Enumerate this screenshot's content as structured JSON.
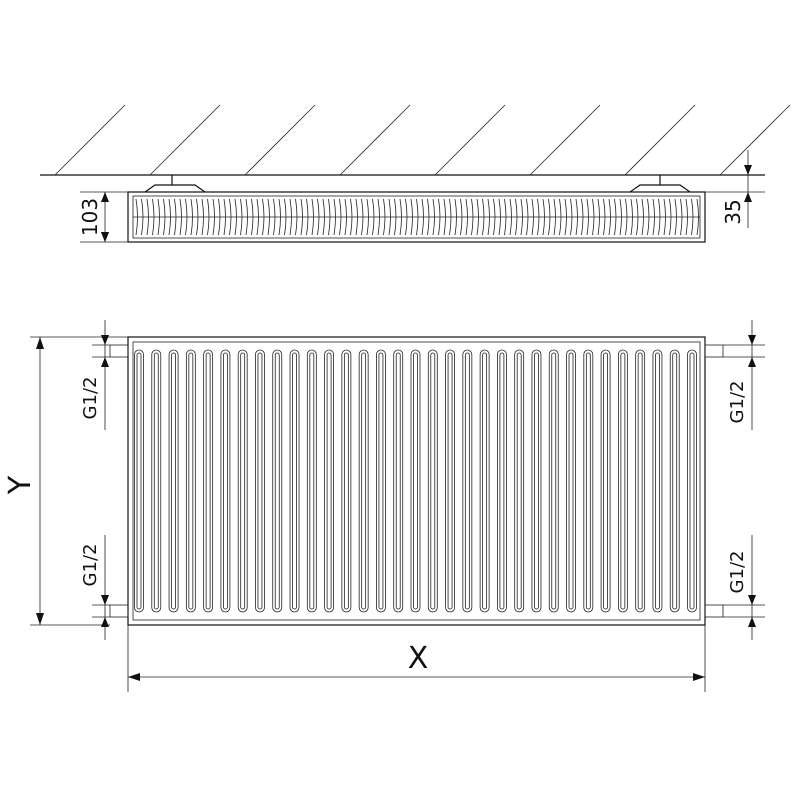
{
  "top_view": {
    "height_label": "103",
    "wall_gap_label": "35"
  },
  "front_view": {
    "width_label": "X",
    "height_label": "Y",
    "connections": {
      "left_top": "G1/2",
      "left_bottom": "G1/2",
      "right_top": "G1/2",
      "right_bottom": "G1/2"
    },
    "fin_count": 33
  },
  "colors": {
    "line": "#111111",
    "background": "#ffffff"
  }
}
